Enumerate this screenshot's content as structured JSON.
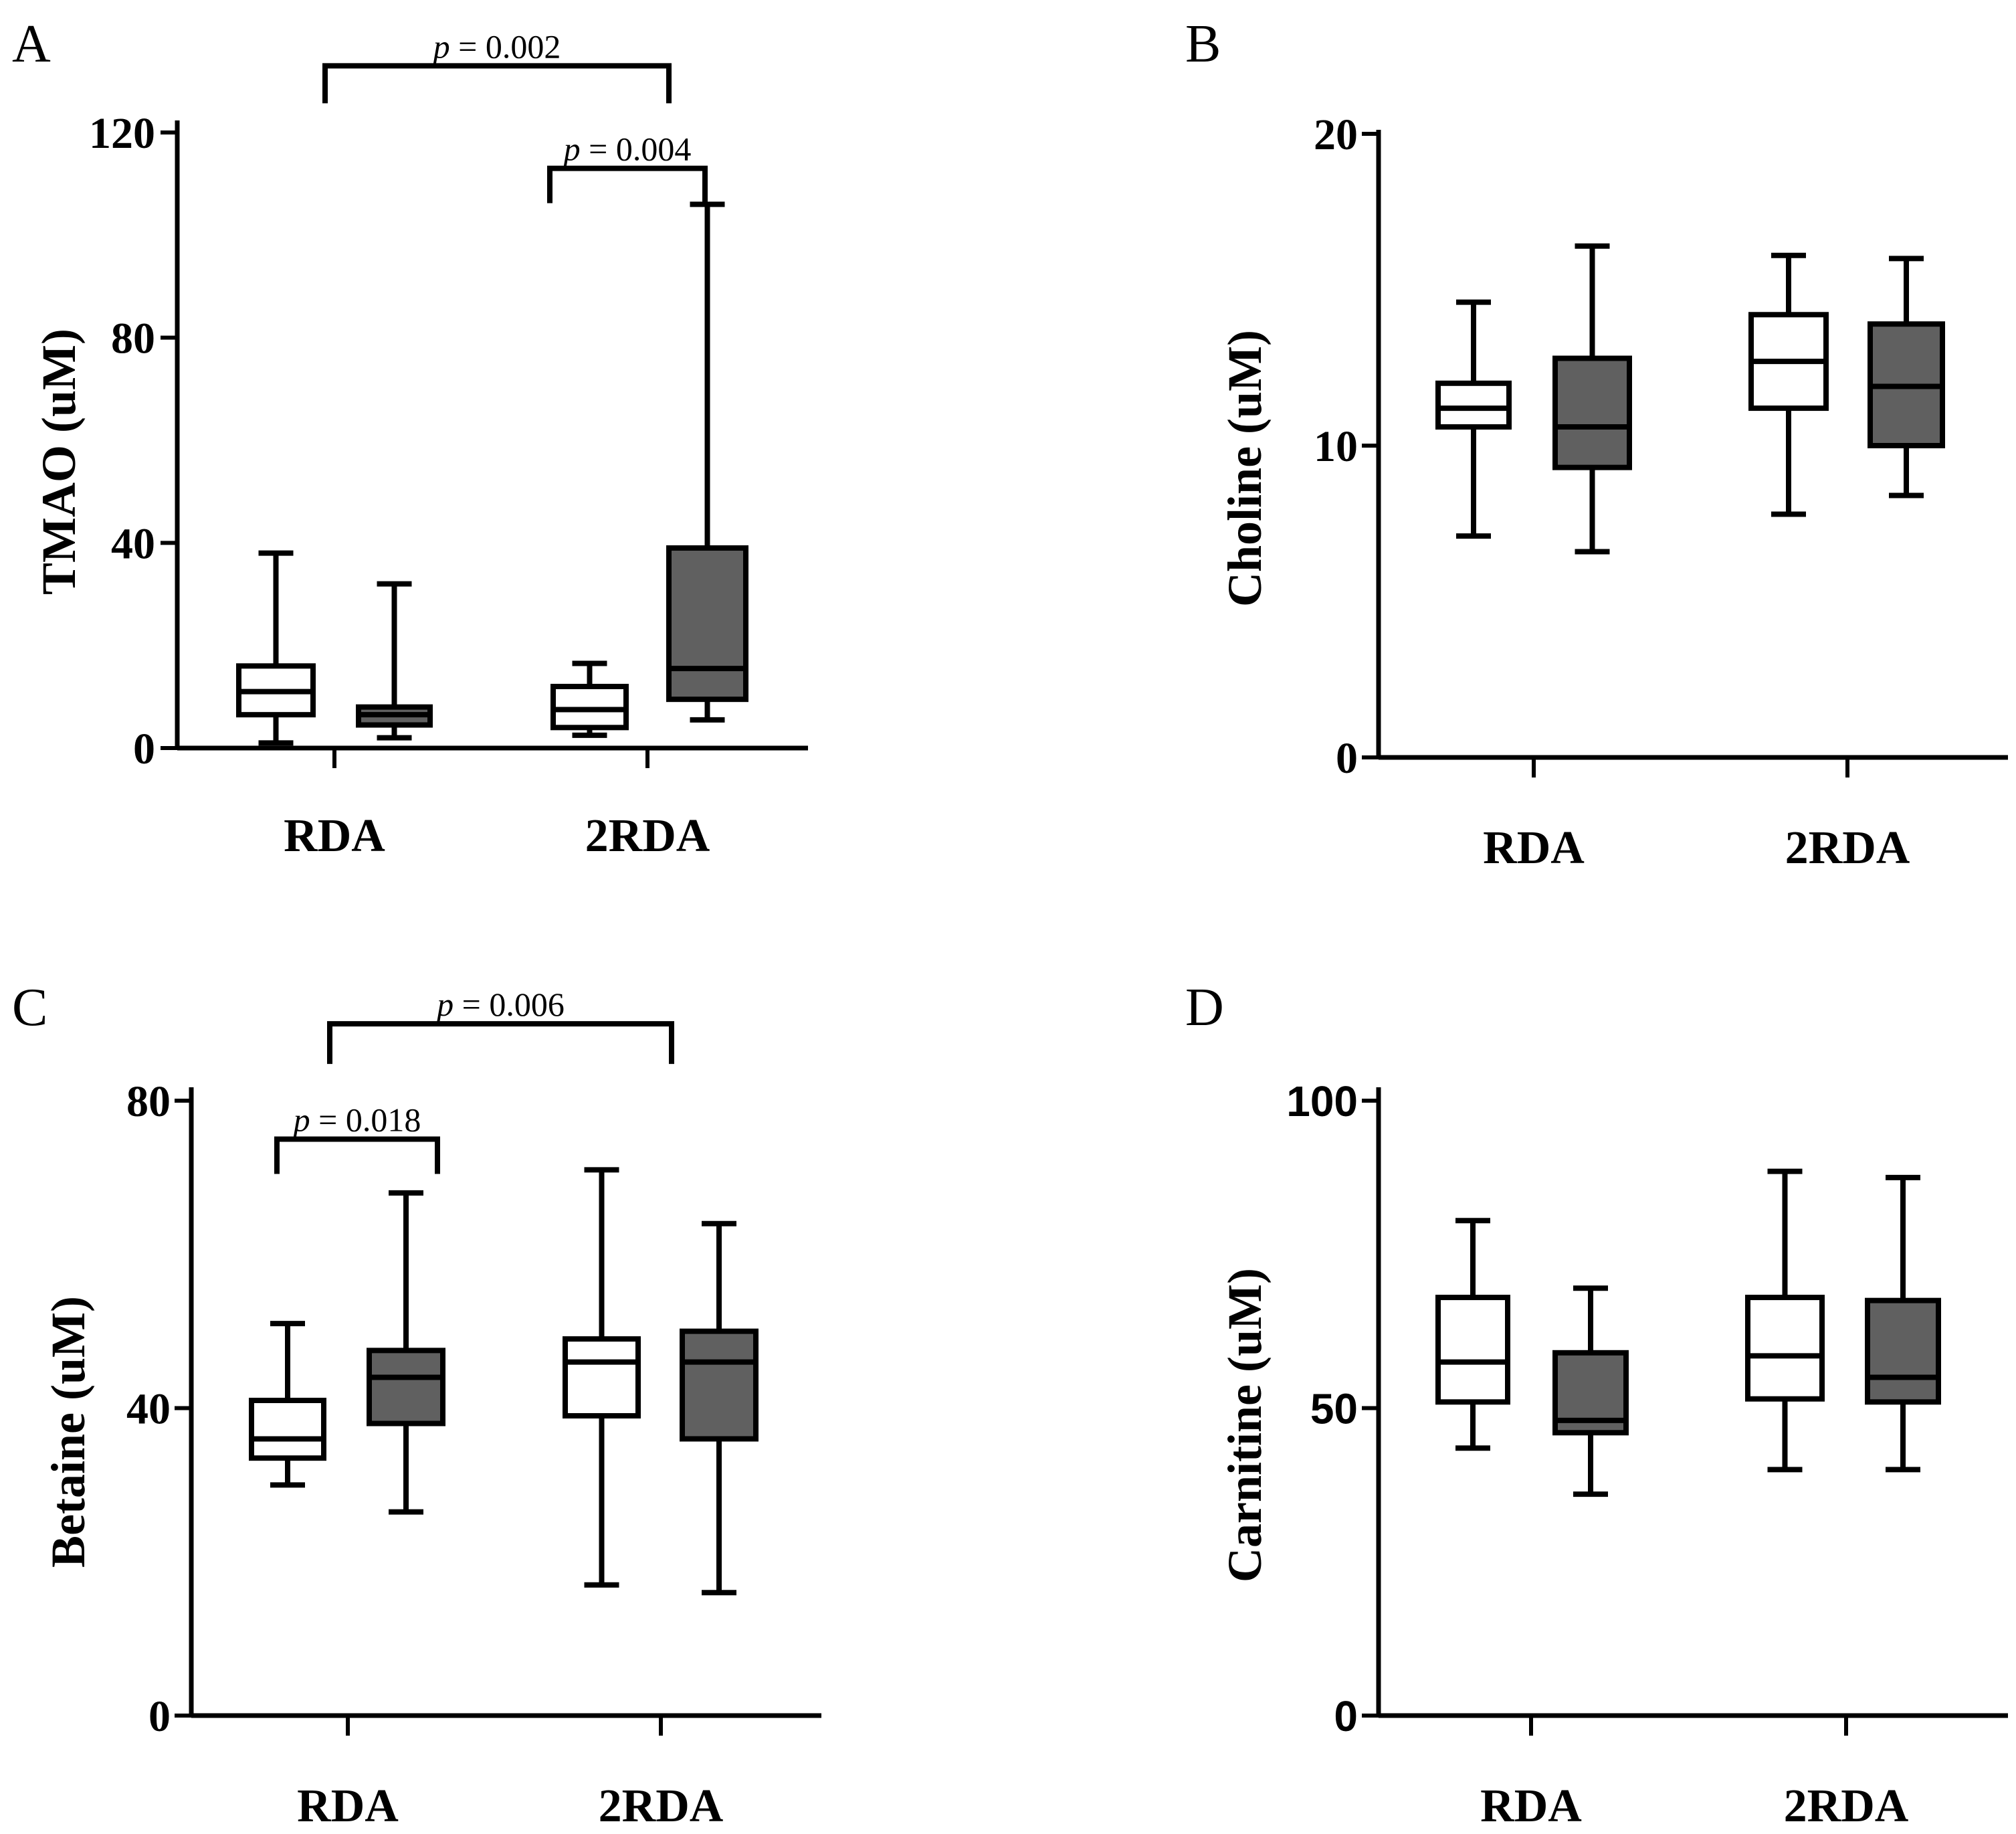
{
  "colors": {
    "ink": "#000000",
    "group_a_fill": "#ffffff",
    "group_b_fill": "#606060"
  },
  "chart_data": [
    {
      "type": "box",
      "panel": "A",
      "ylabel": "TMAO (uM)",
      "categories": [
        "RDA",
        "2RDA"
      ],
      "ylim": [
        0,
        120
      ],
      "yticks": [
        0,
        40,
        80,
        120
      ],
      "ytick_labels": [
        "0",
        "40",
        "80",
        "120"
      ],
      "series": [
        {
          "name": "group 1 (white)",
          "boxes": [
            {
              "category": "RDA",
              "min": 1,
              "q1": 6.5,
              "median": 11,
              "q3": 16,
              "max": 38
            },
            {
              "category": "2RDA",
              "min": 2.5,
              "q1": 4,
              "median": 7.5,
              "q3": 12,
              "max": 16.5
            }
          ]
        },
        {
          "name": "group 2 (grey)",
          "boxes": [
            {
              "category": "RDA",
              "min": 2,
              "q1": 4.5,
              "median": 6.5,
              "q3": 8,
              "max": 32
            },
            {
              "category": "2RDA",
              "min": 5.5,
              "q1": 9.5,
              "median": 15.5,
              "q3": 39,
              "max": 106
            }
          ]
        }
      ],
      "comparisons": [
        {
          "label_prefix": "p",
          "label_value": " = 0.002",
          "from": "RDA group 1",
          "to": "2RDA group 1",
          "level": 133
        },
        {
          "label_prefix": "p",
          "label_value": " = 0.004",
          "from": "2RDA group 1",
          "to": "2RDA group 2",
          "level": 113
        }
      ]
    },
    {
      "type": "box",
      "panel": "B",
      "ylabel": "Choline (uM)",
      "categories": [
        "RDA",
        "2RDA"
      ],
      "ylim": [
        0,
        20
      ],
      "yticks": [
        0,
        10,
        20
      ],
      "ytick_labels": [
        "0",
        "10",
        "20"
      ],
      "series": [
        {
          "name": "group 1 (white)",
          "boxes": [
            {
              "category": "RDA",
              "min": 7.1,
              "q1": 10.6,
              "median": 11.2,
              "q3": 12,
              "max": 14.6
            },
            {
              "category": "2RDA",
              "min": 7.8,
              "q1": 11.2,
              "median": 12.7,
              "q3": 14.2,
              "max": 16.1
            }
          ]
        },
        {
          "name": "group 2 (grey)",
          "boxes": [
            {
              "category": "RDA",
              "min": 6.6,
              "q1": 9.3,
              "median": 10.6,
              "q3": 12.8,
              "max": 16.4
            },
            {
              "category": "2RDA",
              "min": 8.4,
              "q1": 10,
              "median": 11.9,
              "q3": 13.9,
              "max": 16
            }
          ]
        }
      ],
      "comparisons": []
    },
    {
      "type": "box",
      "panel": "C",
      "ylabel": "Betaine (uM)",
      "categories": [
        "RDA",
        "2RDA"
      ],
      "ylim": [
        0,
        80
      ],
      "yticks": [
        0,
        40,
        80
      ],
      "ytick_labels": [
        "0",
        "40",
        "80"
      ],
      "series": [
        {
          "name": "group 1 (white)",
          "boxes": [
            {
              "category": "RDA",
              "min": 30,
              "q1": 33.5,
              "median": 36,
              "q3": 41,
              "max": 51
            },
            {
              "category": "2RDA",
              "min": 17,
              "q1": 39,
              "median": 46,
              "q3": 49,
              "max": 71
            }
          ]
        },
        {
          "name": "group 2 (grey)",
          "boxes": [
            {
              "category": "RDA",
              "min": 26.5,
              "q1": 38,
              "median": 44,
              "q3": 47.5,
              "max": 68
            },
            {
              "category": "2RDA",
              "min": 16,
              "q1": 36,
              "median": 46,
              "q3": 50,
              "max": 64
            }
          ]
        }
      ],
      "comparisons": [
        {
          "label_prefix": "p",
          "label_value": " = 0.006",
          "from": "RDA group 1",
          "to": "2RDA group 1",
          "level": 90
        },
        {
          "label_prefix": "p",
          "label_value": " = 0.018",
          "from": "RDA group 1",
          "to": "RDA group 2",
          "level": 75
        }
      ]
    },
    {
      "type": "box",
      "panel": "D",
      "ylabel": "Carnitine (uM)",
      "categories": [
        "RDA",
        "2RDA"
      ],
      "ylim": [
        0,
        100
      ],
      "yticks": [
        0,
        50,
        100
      ],
      "ytick_labels": [
        "0",
        "50",
        "100"
      ],
      "series": [
        {
          "name": "group 1 (white)",
          "boxes": [
            {
              "category": "RDA",
              "min": 43.5,
              "q1": 51,
              "median": 57.5,
              "q3": 68,
              "max": 80.5
            },
            {
              "category": "2RDA",
              "min": 40,
              "q1": 51.5,
              "median": 58.5,
              "q3": 68,
              "max": 88.5
            }
          ]
        },
        {
          "name": "group 2 (grey)",
          "boxes": [
            {
              "category": "RDA",
              "min": 36,
              "q1": 46,
              "median": 48,
              "q3": 59,
              "max": 69.5
            },
            {
              "category": "2RDA",
              "min": 40,
              "q1": 51,
              "median": 55,
              "q3": 67.5,
              "max": 87.5
            }
          ]
        }
      ],
      "comparisons": []
    }
  ]
}
